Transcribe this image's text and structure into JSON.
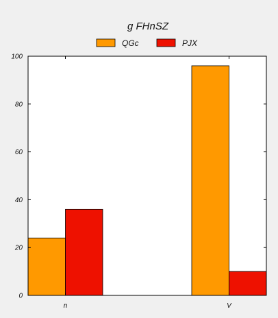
{
  "chart_data": {
    "type": "bar",
    "title": "g FHnSZ",
    "categories": [
      "n",
      "V"
    ],
    "series": [
      {
        "name": "QGc",
        "color": "#ff9900",
        "values": [
          24,
          96
        ]
      },
      {
        "name": "PJX",
        "color": "#ee1100",
        "values": [
          36,
          10
        ]
      }
    ],
    "xlabel": "",
    "ylabel": "",
    "ylim": [
      0,
      100
    ],
    "yticks": [
      0,
      20,
      40,
      60,
      80,
      100
    ],
    "grid": false,
    "legend": "top-center"
  }
}
